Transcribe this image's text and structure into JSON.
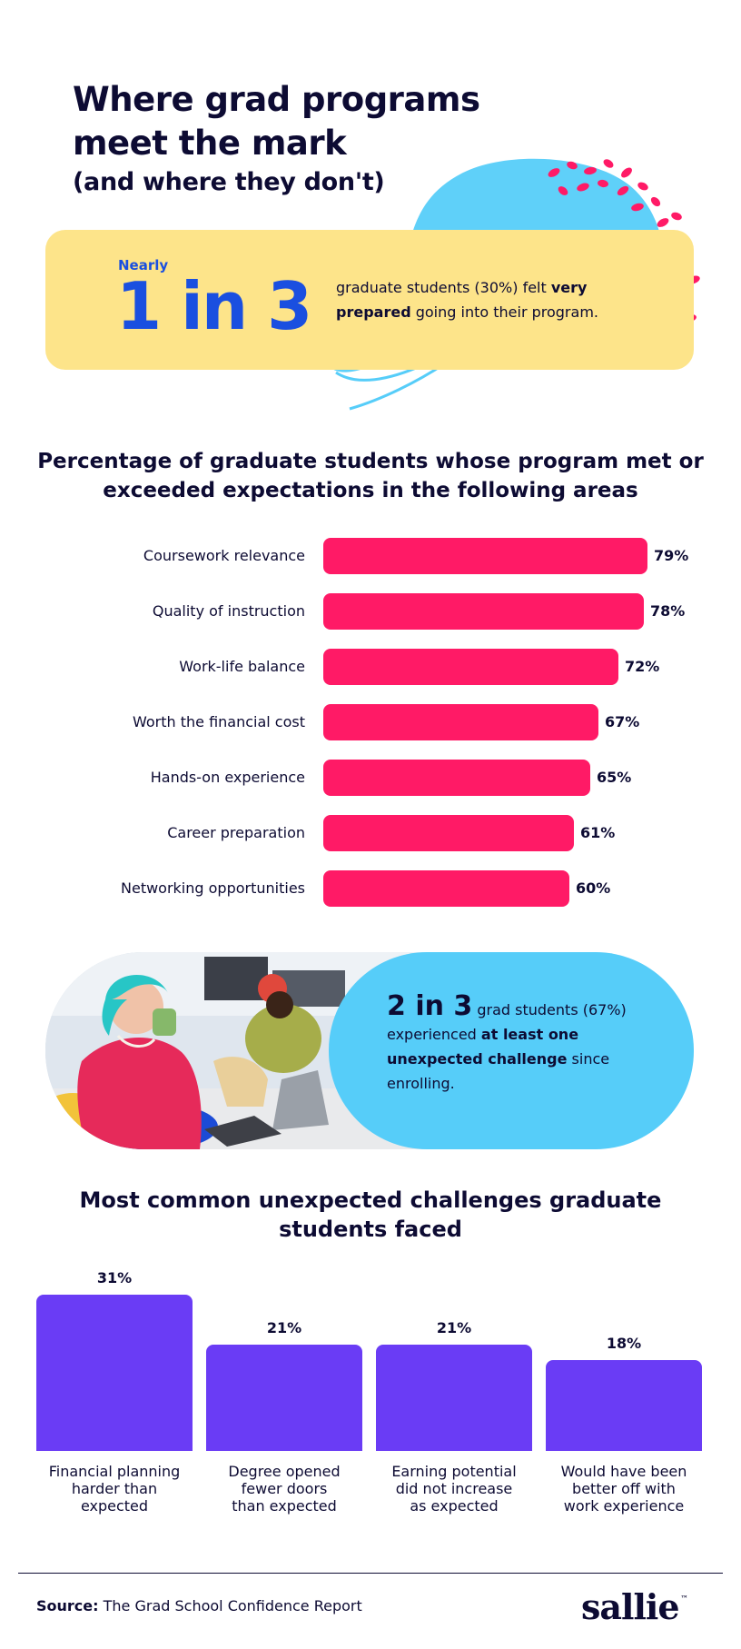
{
  "header": {
    "title_line1": "Where grad programs",
    "title_line2": "meet the mark",
    "subtitle": "(and where they don't)"
  },
  "stat_prepared": {
    "prefix": "Nearly",
    "big": "1 in 3",
    "desc_before": "graduate students (30%) felt ",
    "desc_bold": "very prepared",
    "desc_after": " going into their program."
  },
  "stat_challenge": {
    "big": "2 in 3",
    "desc_before": " grad students (67%) experienced ",
    "desc_bold": "at least one unexpected challenge",
    "desc_after": " since enrolling."
  },
  "colors": {
    "pink": "#ff1a66",
    "purple": "#6a3cf5",
    "yellow": "#fde48a",
    "sky": "#56cdf9",
    "blue": "#1a4fe0",
    "navy": "#0d0b33"
  },
  "chart_data": [
    {
      "type": "bar",
      "orientation": "horizontal",
      "title": "Percentage of graduate students whose program met or exceeded expectations in the following areas",
      "categories": [
        "Coursework relevance",
        "Quality of instruction",
        "Work-life balance",
        "Worth the financial cost",
        "Hands-on experience",
        "Career preparation",
        "Networking opportunities"
      ],
      "values": [
        79,
        78,
        72,
        67,
        65,
        61,
        60
      ],
      "value_labels": [
        "79%",
        "78%",
        "72%",
        "67%",
        "65%",
        "61%",
        "60%"
      ],
      "xlim": [
        0,
        100
      ],
      "grid": false
    },
    {
      "type": "bar",
      "orientation": "vertical",
      "title": "Most common unexpected challenges graduate students faced",
      "categories": [
        "Financial planning harder than expected",
        "Degree opened fewer doors than expected",
        "Earning potential did not increase as expected",
        "Would have been better off with work experience"
      ],
      "category_lines": [
        [
          "Financial planning",
          "harder than",
          "expected"
        ],
        [
          "Degree opened",
          "fewer doors",
          "than expected"
        ],
        [
          "Earning potential",
          "did not increase",
          "as expected"
        ],
        [
          "Would have been",
          "better off with",
          "work experience"
        ]
      ],
      "values": [
        31,
        21,
        21,
        18
      ],
      "value_labels": [
        "31%",
        "21%",
        "21%",
        "18%"
      ],
      "ylim": [
        0,
        31
      ],
      "grid": false
    }
  ],
  "footer": {
    "source_label": "Source:",
    "source_text": " The Grad School Confidence Report",
    "logo": "sallie",
    "logo_mark": "™"
  }
}
